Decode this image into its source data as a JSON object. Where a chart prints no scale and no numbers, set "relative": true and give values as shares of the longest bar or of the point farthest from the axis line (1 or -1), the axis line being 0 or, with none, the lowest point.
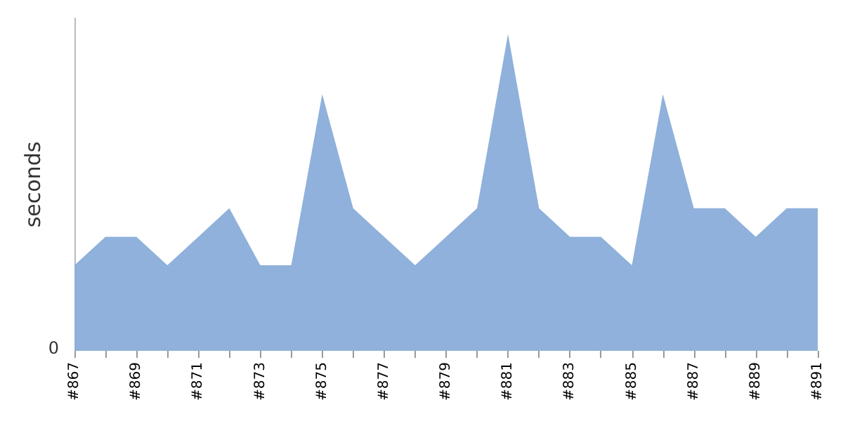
{
  "chart_data": {
    "type": "area",
    "ylabel": "seconds",
    "relative": true,
    "annotations": [
      "0"
    ],
    "categories": [
      "#867",
      null,
      "#869",
      null,
      "#871",
      null,
      "#873",
      null,
      "#875",
      null,
      "#877",
      null,
      "#879",
      null,
      "#881",
      null,
      "#883",
      null,
      "#885",
      null,
      "#887",
      null,
      "#889",
      null,
      "#891"
    ],
    "series": [
      {
        "color": "#8fb1db",
        "values": [
          0.27,
          0.36,
          0.36,
          0.27,
          0.36,
          0.45,
          0.27,
          0.27,
          0.81,
          0.45,
          0.36,
          0.27,
          0.36,
          0.45,
          1,
          0.45,
          0.36,
          0.36,
          0.27,
          0.81,
          0.45,
          0.45,
          0.36,
          0.45,
          0.45
        ]
      }
    ]
  }
}
